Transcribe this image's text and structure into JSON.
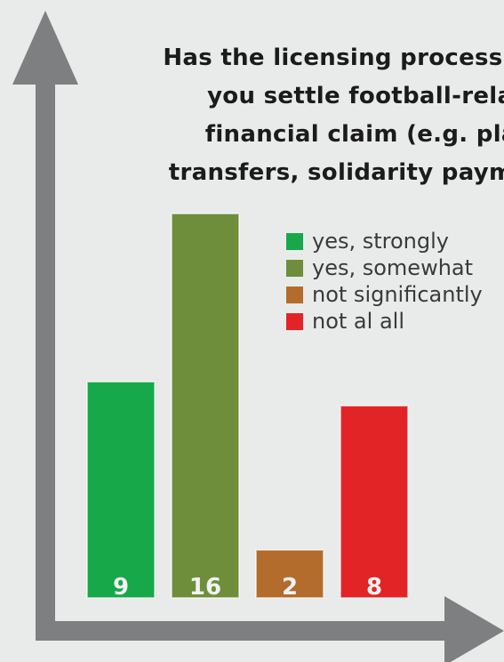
{
  "chart_data": {
    "type": "bar",
    "title_lines": [
      "Has the licensing process helped",
      "you settle football-related",
      "financial claim (e.g. player",
      "transfers, solidarity payments)?"
    ],
    "categories": [
      "yes, strongly",
      "yes, somewhat",
      "not significantly",
      "not al all"
    ],
    "values": [
      9,
      16,
      2,
      8
    ],
    "value_labels": [
      "9",
      "16",
      "2",
      "8"
    ],
    "colors": [
      "#17a84a",
      "#6e8e3b",
      "#b36c2b",
      "#e32426"
    ],
    "legend": {
      "placement": "top-right",
      "entries": [
        {
          "label": "yes, strongly",
          "color": "#17a84a"
        },
        {
          "label": "yes, somewhat",
          "color": "#6e8e3b"
        },
        {
          "label": "not significantly",
          "color": "#b36c2b"
        },
        {
          "label": "not al all",
          "color": "#e32426"
        }
      ]
    },
    "ylim": [
      0,
      16
    ],
    "grid": false,
    "axis_color": "#7d7f80"
  }
}
